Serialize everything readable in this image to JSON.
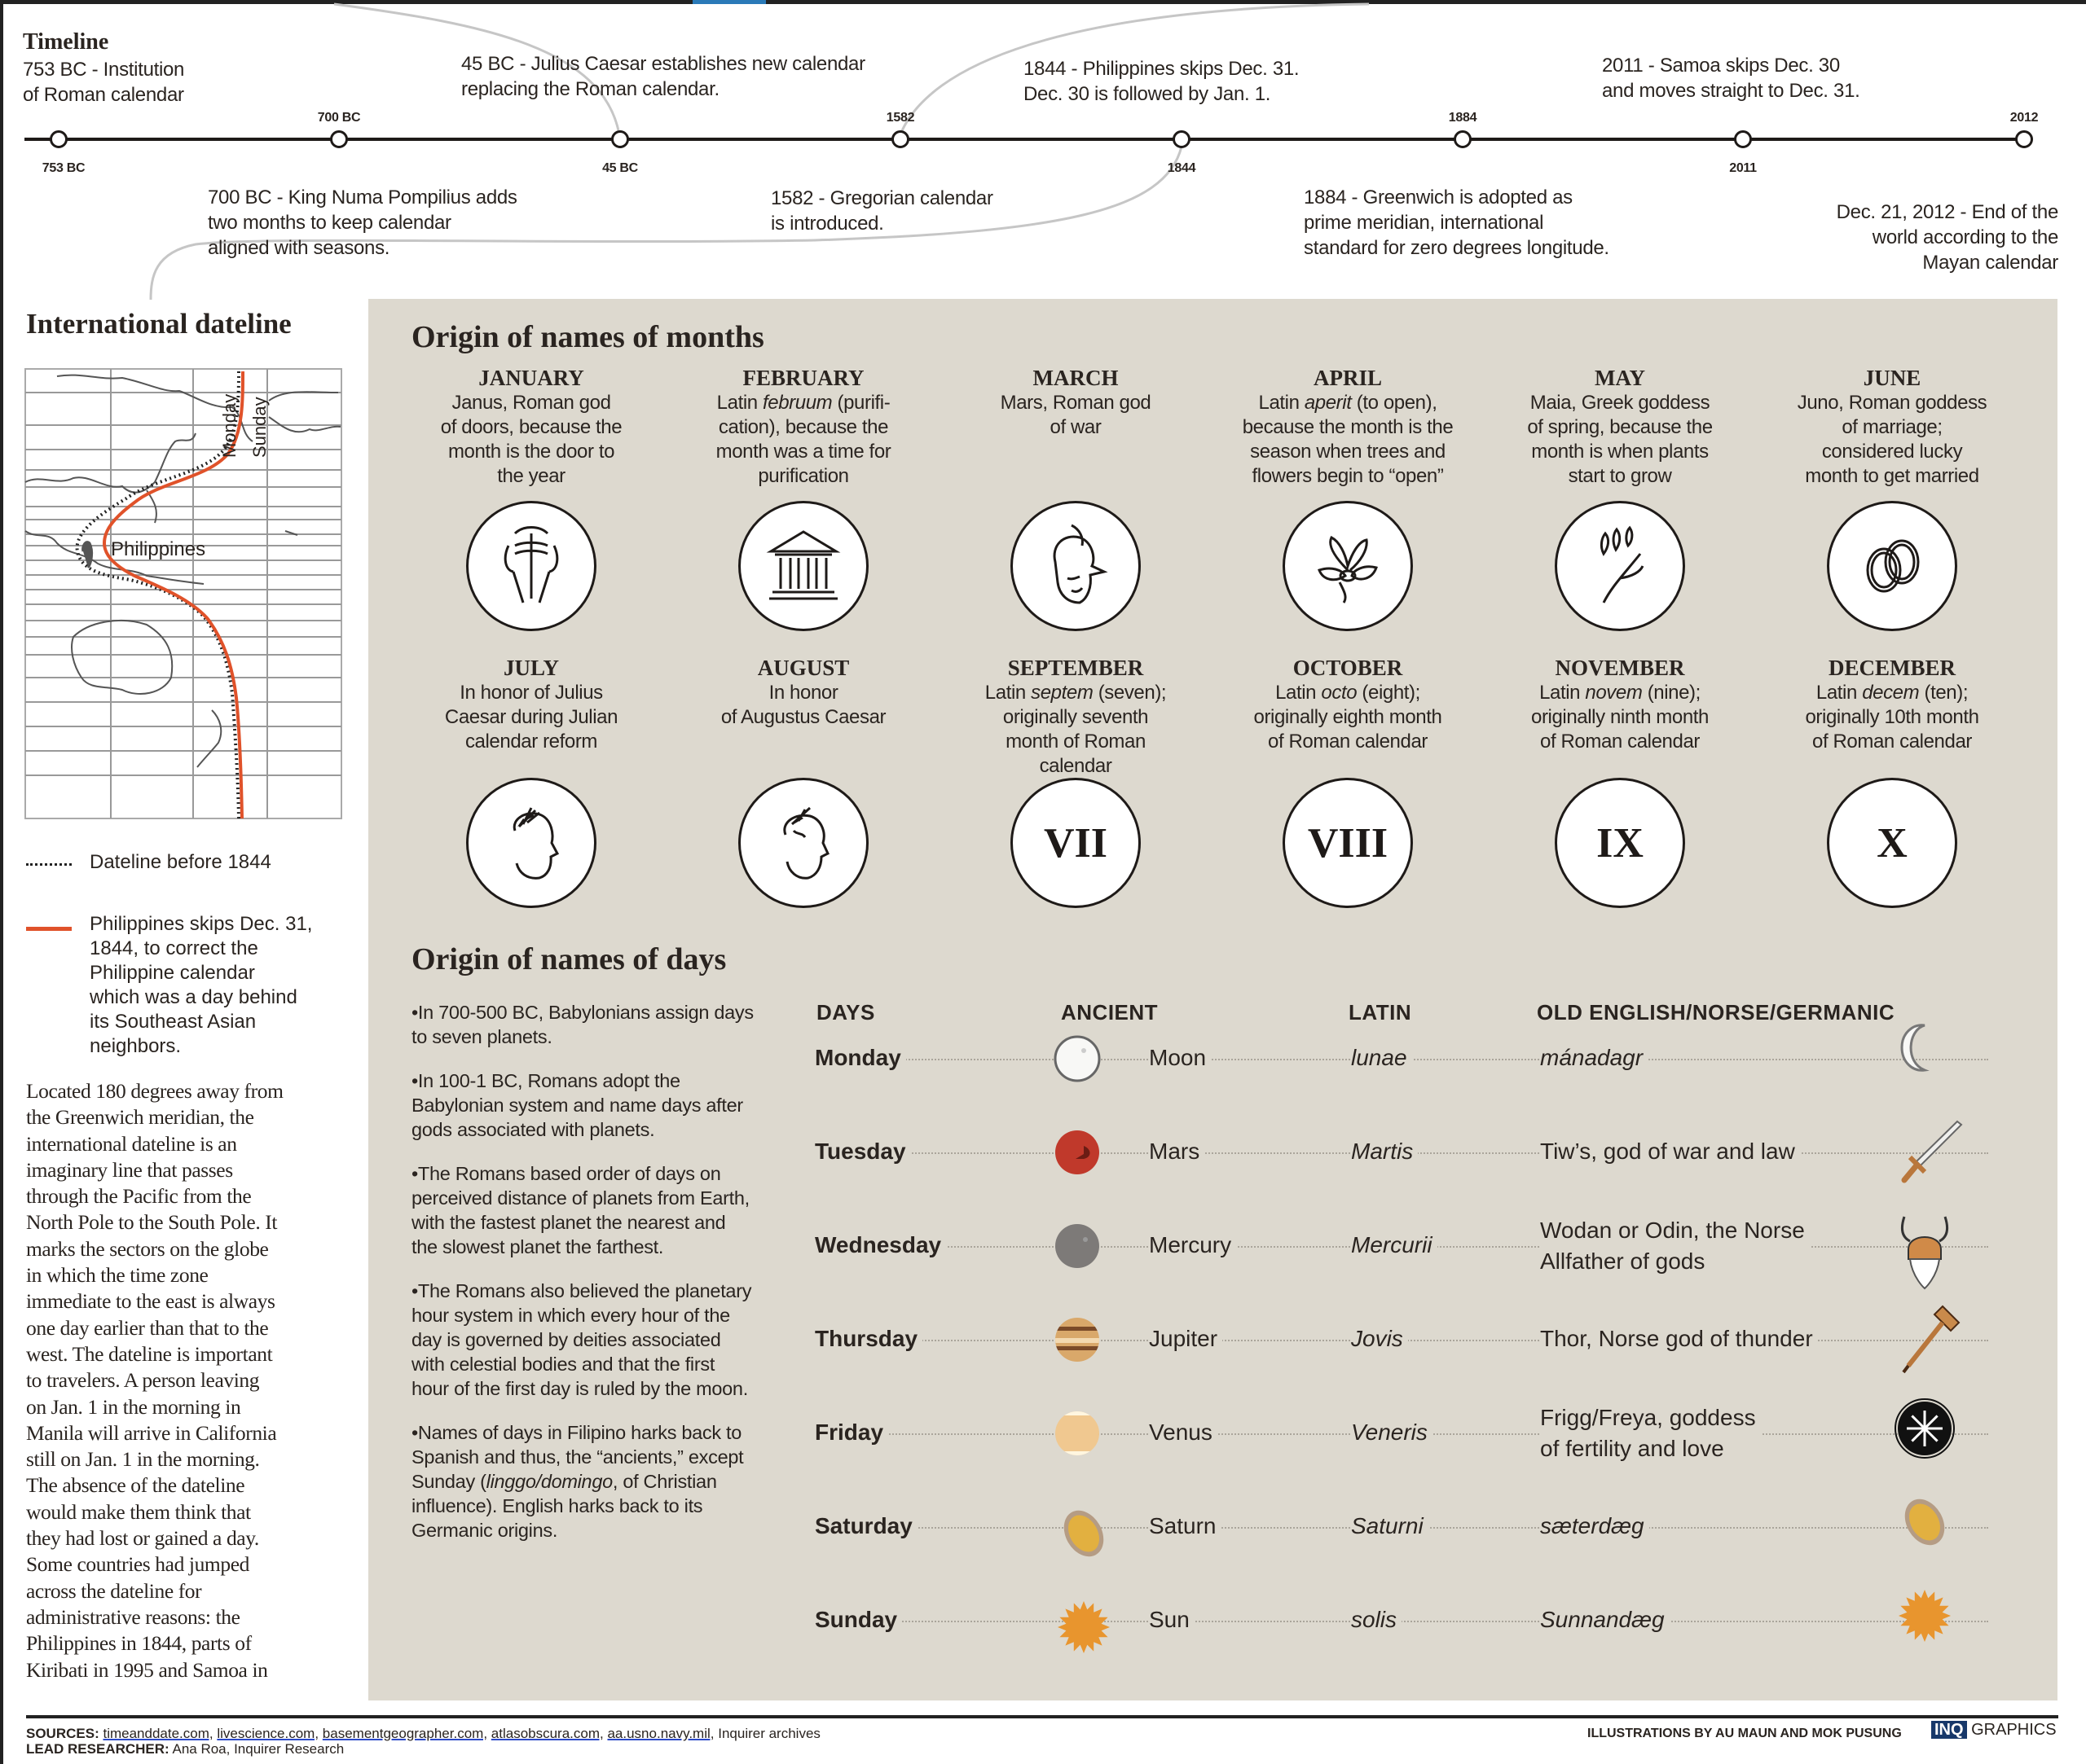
{
  "timeline": {
    "title": "Timeline",
    "events_above": [
      {
        "text_lines": [
          "753 BC - Institution",
          "of Roman calendar"
        ]
      },
      {
        "text_lines": [
          "45 BC - Julius Caesar establishes new calendar",
          "replacing the Roman calendar."
        ]
      },
      {
        "text_lines": [
          "1844 - Philippines skips Dec. 31.",
          "Dec. 30 is followed by Jan. 1."
        ]
      },
      {
        "text_lines": [
          "2011 - Samoa skips Dec. 30",
          "and moves straight to Dec. 31."
        ]
      }
    ],
    "events_below": [
      {
        "text_lines": [
          "700 BC - King Numa Pompilius adds",
          "two months  to keep calendar",
          "aligned with seasons."
        ]
      },
      {
        "text_lines": [
          "1582 - Gregorian calendar",
          "is introduced."
        ]
      },
      {
        "text_lines": [
          "1884 - Greenwich is adopted as",
          "prime meridian, international",
          "standard for zero degrees longitude."
        ]
      },
      {
        "text_lines": [
          "Dec. 21, 2012 - End of the",
          "world according to the",
          "Mayan calendar"
        ]
      }
    ],
    "year_labels_above": [
      "700 BC",
      "1582",
      "1884",
      "2012"
    ],
    "year_labels_below": [
      "753 BC",
      "45 BC",
      "1844",
      "2011"
    ]
  },
  "dateline": {
    "title": "International dateline",
    "map_labels": {
      "philippines": "Philippines",
      "monday": "Monday",
      "sunday": "Sunday"
    },
    "legend": [
      {
        "style": "dotted",
        "text": "Dateline before 1844"
      },
      {
        "style": "solid",
        "color": "#e0522a",
        "text_lines": [
          "Philippines skips Dec. 31,",
          "1844, to correct the",
          "Philippine calendar",
          "which was a day behind",
          "its Southeast Asian",
          "neighbors."
        ]
      }
    ],
    "body_lines": [
      "Located 180 degrees away from",
      "the Greenwich meridian, the",
      "international dateline is an",
      "imaginary line that passes",
      "through the Pacific from the",
      "North Pole to the South Pole. It",
      "marks the sectors on the globe",
      "in which the time zone",
      "immediate to the east is always",
      "one day earlier than that to the",
      "west. The dateline is important",
      "to travelers. A person leaving",
      "on Jan. 1 in the morning in",
      "Manila will arrive in California",
      "still on Jan. 1 in the morning.",
      "The absence of the dateline",
      "would make them think that",
      "they had lost or gained a day.",
      "Some countries had jumped",
      "across the dateline for",
      "administrative reasons: the",
      "Philippines in 1844, parts of",
      "Kiribati in 1995 and Samoa in"
    ]
  },
  "months": {
    "title": "Origin of names of months",
    "items": [
      {
        "name": "JANUARY",
        "desc_lines": [
          "Janus, Roman god",
          "of doors, because the",
          "month is the door to",
          "the year"
        ],
        "icon": "janus-icon"
      },
      {
        "name": "FEBRUARY",
        "desc_pre": "Latin ",
        "desc_italic": "februum",
        "desc_post": " (purifi-",
        "desc_lines": [
          "cation), because the",
          "month was a time for",
          "purification"
        ],
        "icon": "temple-icon"
      },
      {
        "name": "MARCH",
        "desc_lines": [
          "Mars, Roman god",
          "of war"
        ],
        "icon": "warrior-helmet-icon"
      },
      {
        "name": "APRIL",
        "desc_pre": "Latin ",
        "desc_italic": "aperit",
        "desc_post": " (to open),",
        "desc_lines": [
          "because the month is the",
          "season when trees and",
          "flowers begin to “open”"
        ],
        "icon": "flower-icon"
      },
      {
        "name": "MAY",
        "desc_lines": [
          "Maia, Greek goddess",
          "of spring, because the",
          "month is when plants",
          "start to grow"
        ],
        "icon": "sprout-icon"
      },
      {
        "name": "JUNE",
        "desc_lines": [
          "Juno, Roman goddess",
          "of marriage;",
          "considered lucky",
          "month to get married"
        ],
        "icon": "rings-icon"
      },
      {
        "name": "JULY",
        "desc_lines": [
          "In honor of Julius",
          "Caesar during Julian",
          "calendar reform"
        ],
        "icon": "julius-caesar-icon"
      },
      {
        "name": "AUGUST",
        "desc_lines": [
          "In honor",
          "of Augustus Caesar"
        ],
        "icon": "augustus-icon"
      },
      {
        "name": "SEPTEMBER",
        "desc_pre": "Latin ",
        "desc_italic": "septem",
        "desc_post": " (seven);",
        "desc_lines": [
          "originally seventh",
          "month of Roman",
          "calendar"
        ],
        "numeral": "VII"
      },
      {
        "name": "OCTOBER",
        "desc_pre": "Latin ",
        "desc_italic": "octo",
        "desc_post": " (eight);",
        "desc_lines": [
          "originally eighth month",
          "of Roman calendar"
        ],
        "numeral": "VIII"
      },
      {
        "name": "NOVEMBER",
        "desc_pre": "Latin ",
        "desc_italic": "novem",
        "desc_post": " (nine);",
        "desc_lines": [
          "originally ninth month",
          "of Roman calendar"
        ],
        "numeral": "IX"
      },
      {
        "name": "DECEMBER",
        "desc_pre": "Latin ",
        "desc_italic": "decem",
        "desc_post": " (ten);",
        "desc_lines": [
          "originally 10th month",
          "of Roman calendar"
        ],
        "numeral": "X"
      }
    ]
  },
  "days": {
    "title": "Origin of names of days",
    "bullets": [
      {
        "text": "•In 700-500 BC, Babylonians assign days to seven planets."
      },
      {
        "text": "•In 100-1 BC, Romans adopt the Babylonian system and name days after gods associated with planets."
      },
      {
        "text": "•The Romans based order of days on perceived distance of planets from Earth, with the fastest planet the nearest and the slowest planet the farthest."
      },
      {
        "text": "•The Romans also believed the planetary hour system in which every hour of the day is governed by deities associated with celestial bodies and that the first hour of the first day is ruled by the moon."
      },
      {
        "pre": "•Names of days in Filipino harks back to Spanish and thus, the “ancients,” except Sunday (",
        "italic": "linggo/domingo",
        "post": ", of Christian influence). English harks back to its Germanic origins."
      }
    ],
    "columns": [
      "DAYS",
      "ANCIENT",
      "LATIN",
      "OLD ENGLISH/NORSE/GERMANIC"
    ],
    "rows": [
      {
        "day": "Monday",
        "ancient": "Moon",
        "latin": "lunae",
        "old": [
          "mánadagr"
        ],
        "old_italic": true,
        "planet_icon": "moon-icon",
        "norse_icon": "crescent-moon-icon"
      },
      {
        "day": "Tuesday",
        "ancient": "Mars",
        "latin": "Martis",
        "old": [
          "Tiw’s, god of war and law"
        ],
        "old_italic": false,
        "planet_icon": "mars-icon",
        "norse_icon": "sword-icon"
      },
      {
        "day": "Wednesday",
        "ancient": "Mercury",
        "latin": "Mercurii",
        "old": [
          "Wodan or Odin, the Norse",
          "Allfather of gods"
        ],
        "old_italic": false,
        "planet_icon": "mercury-icon",
        "norse_icon": "viking-helmet-icon"
      },
      {
        "day": "Thursday",
        "ancient": "Jupiter",
        "latin": "Jovis",
        "old": [
          "Thor, Norse god of thunder"
        ],
        "old_italic": false,
        "planet_icon": "jupiter-icon",
        "norse_icon": "hammer-icon"
      },
      {
        "day": "Friday",
        "ancient": "Venus",
        "latin": "Veneris",
        "old": [
          "Frigg/Freya, goddess",
          "of fertility and love"
        ],
        "old_italic": false,
        "planet_icon": "venus-icon",
        "norse_icon": "norse-symbol-icon"
      },
      {
        "day": "Saturday",
        "ancient": "Saturn",
        "latin": "Saturni",
        "old": [
          "sæterdæg"
        ],
        "old_italic": true,
        "planet_icon": "saturn-icon",
        "norse_icon": "saturn-icon"
      },
      {
        "day": "Sunday",
        "ancient": "Sun",
        "latin": "solis",
        "old": [
          "Sunnandæg"
        ],
        "old_italic": true,
        "planet_icon": "sun-icon",
        "norse_icon": "sun-icon"
      }
    ]
  },
  "footer": {
    "sources_label": "SOURCES:",
    "sources": [
      "timeanddate.com,",
      "livescience.com,",
      "basementgeographer.com,",
      "atlasobscura.com,",
      "aa.usno.navy.mil,"
    ],
    "sources_tail": "Inquirer archives",
    "researcher_label": "LEAD RESEARCHER:",
    "researcher": "Ana Roa, Inquirer Research",
    "illustrations": "ILLUSTRATIONS BY AU MAUN  AND MOK PUSUNG",
    "brand_box": "INQ",
    "brand_text": "GRAPHICS"
  },
  "colors": {
    "panel": "#ddd9cf",
    "dateline_red": "#e0522a",
    "brand_blue": "#17386a",
    "link_blue": "#2a48c8"
  }
}
